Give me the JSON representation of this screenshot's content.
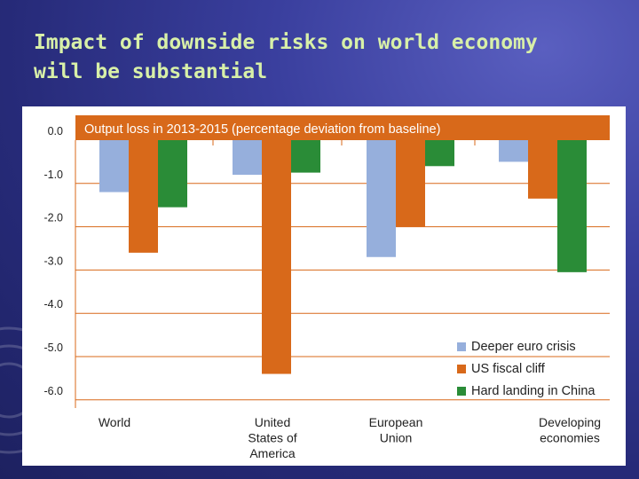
{
  "slide": {
    "title": "Impact of downside risks on world economy will be substantial"
  },
  "chart_data": {
    "type": "bar",
    "title": "Output loss in 2013-2015 (percentage deviation from baseline)",
    "categories": [
      "World",
      "United States of America",
      "European Union",
      "Developing economies"
    ],
    "series": [
      {
        "name": "Deeper euro crisis",
        "color": "#96afdc",
        "values": [
          -1.2,
          -0.8,
          -2.7,
          -0.5
        ]
      },
      {
        "name": "US fiscal cliff",
        "color": "#d8691a",
        "values": [
          -2.6,
          -5.4,
          -2.0,
          -1.35
        ]
      },
      {
        "name": "Hard landing in China",
        "color": "#2a8c37",
        "values": [
          -1.55,
          -0.75,
          -0.6,
          -3.05
        ]
      }
    ],
    "yticks": [
      "0.0",
      "-1.0",
      "-2.0",
      "-3.0",
      "-4.0",
      "-5.0",
      "-6.0"
    ],
    "ylim": [
      -6,
      0
    ],
    "grid": true,
    "legend_position": "bottom-right",
    "colors": {
      "title_band": "#d8691a",
      "grid": "#d8691a"
    }
  }
}
